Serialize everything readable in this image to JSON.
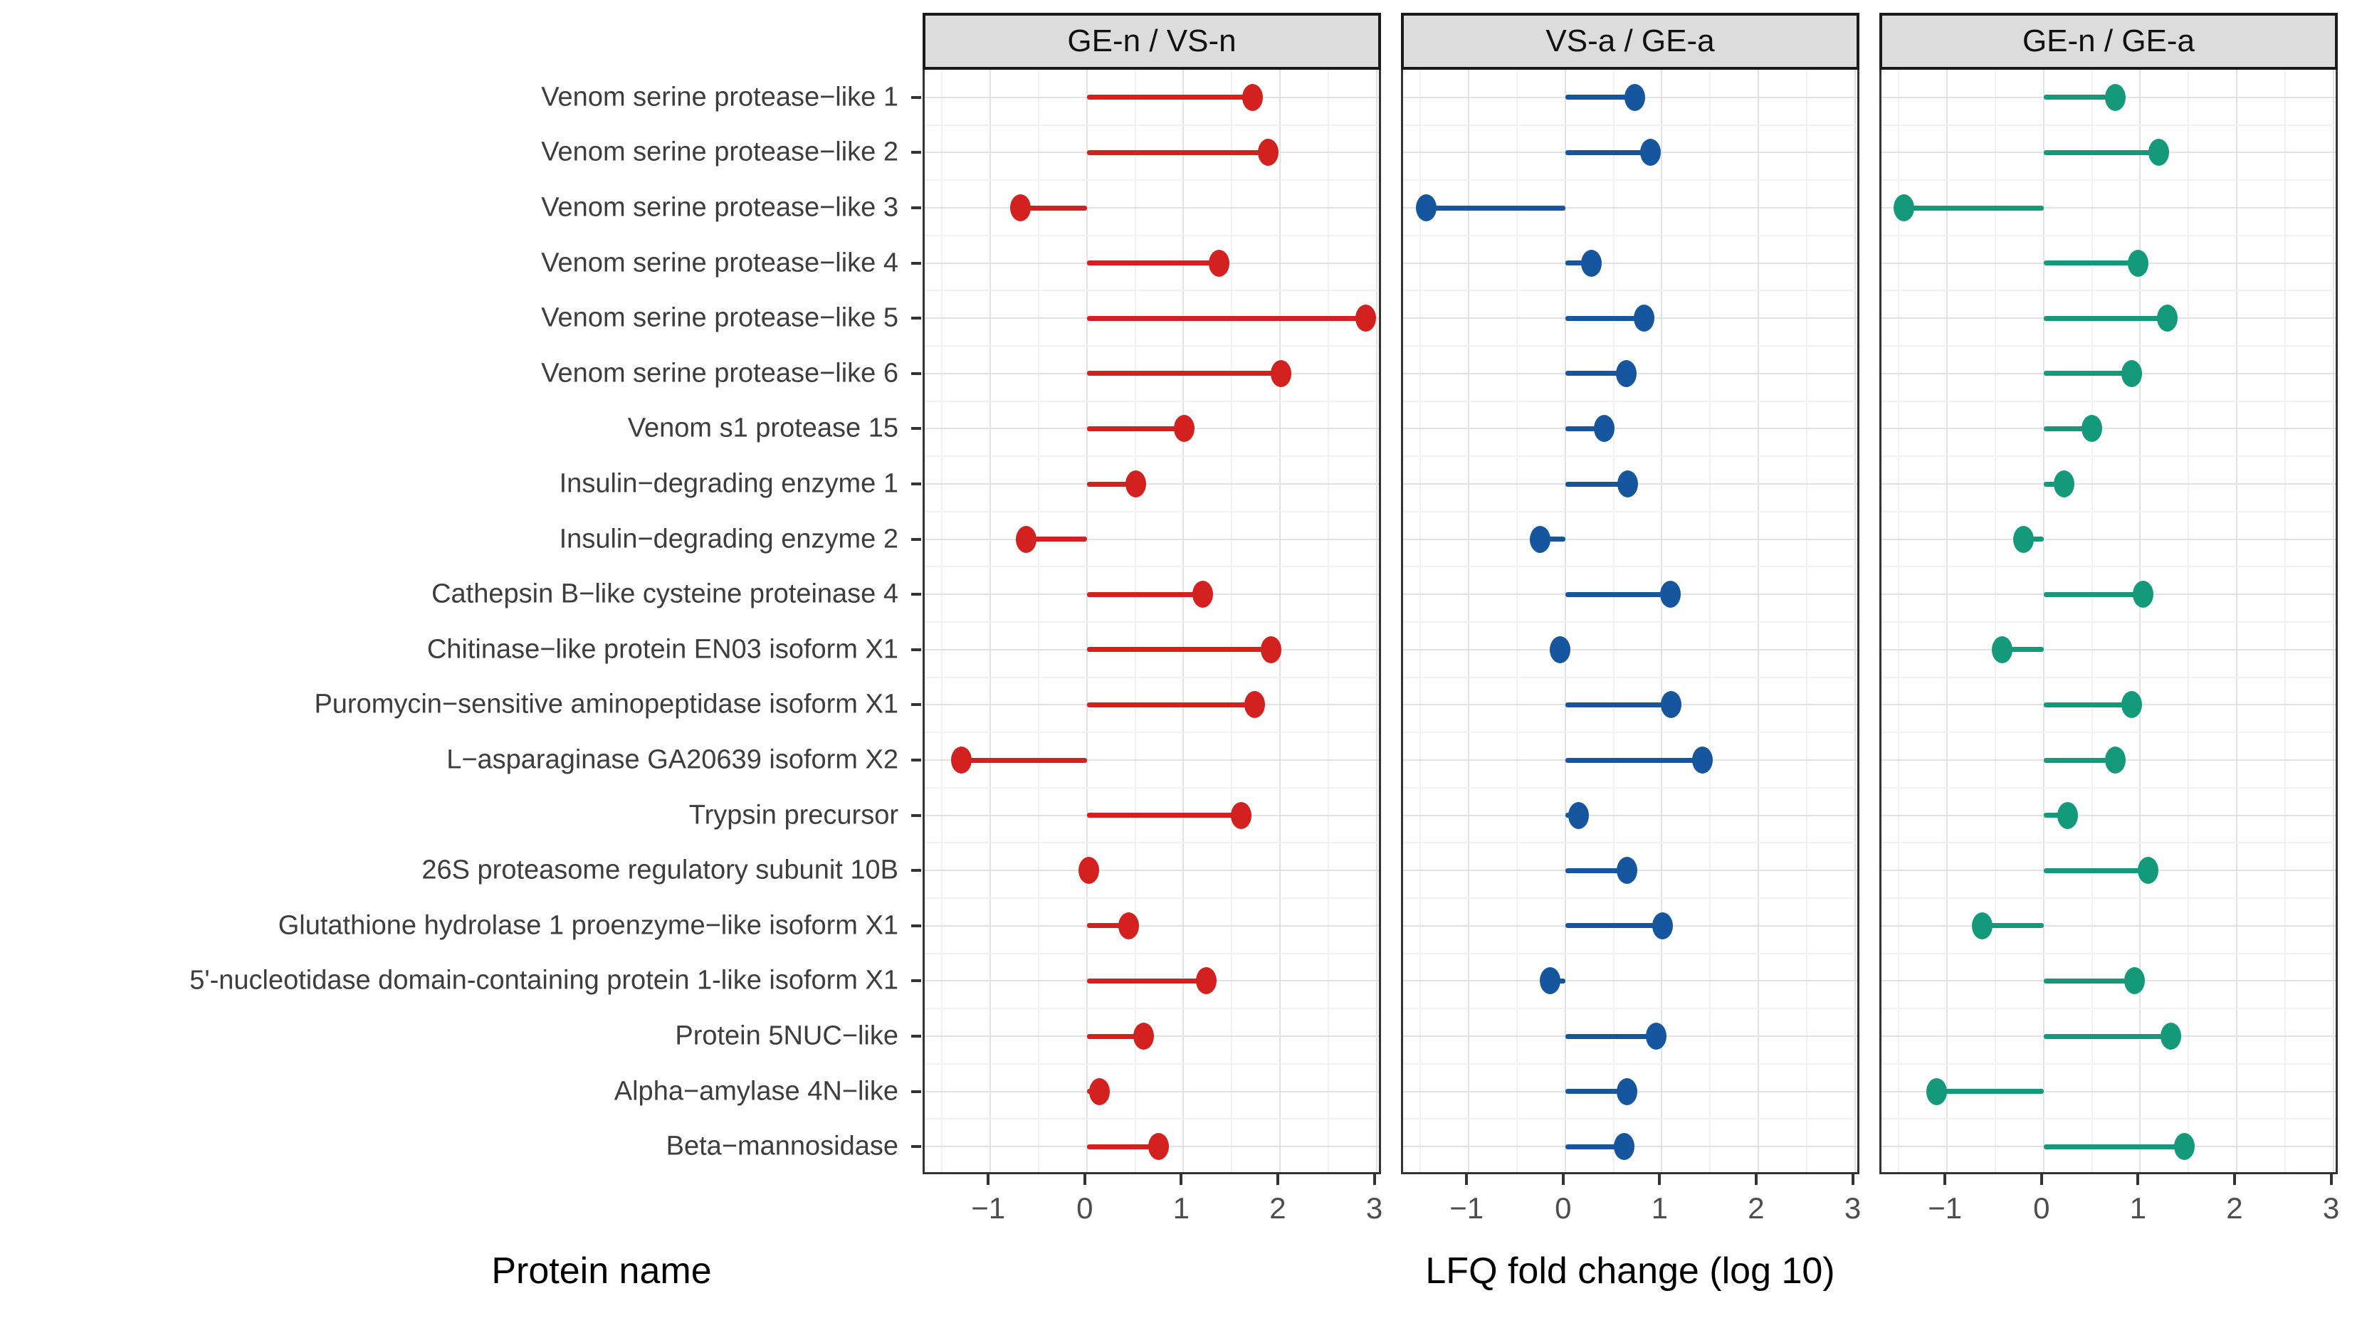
{
  "figure": {
    "y_axis_title": "Protein name",
    "x_axis_title": "LFQ fold change (log 10)"
  },
  "chart_data": {
    "type": "lollipop",
    "orientation": "horizontal",
    "title": "",
    "xlabel": "LFQ fold change (log 10)",
    "ylabel": "Protein name",
    "grid": true,
    "legend_position": "none",
    "xlim": [
      -1.68,
      3.07
    ],
    "x_ticks": [
      -1,
      0,
      1,
      2,
      3
    ],
    "x_tick_labels": [
      "−1",
      "0",
      "1",
      "2",
      "3"
    ],
    "minor_grid_step": 0.5,
    "baseline": 0,
    "categories": [
      "Venom serine protease−like 1",
      "Venom serine protease−like 2",
      "Venom serine protease−like 3",
      "Venom serine protease−like 4",
      "Venom serine protease−like 5",
      "Venom serine protease−like 6",
      "Venom s1 protease 15",
      "Insulin−degrading enzyme 1",
      "Insulin−degrading enzyme 2",
      "Cathepsin B−like cysteine proteinase 4",
      "Chitinase−like protein EN03 isoform X1",
      "Puromycin−sensitive aminopeptidase isoform X1",
      "L−asparaginase GA20639 isoform X2",
      "Trypsin precursor",
      "26S proteasome regulatory subunit 10B",
      "Glutathione hydrolase 1 proenzyme−like isoform X1",
      "5'-nucleotidase domain-containing protein 1-like isoform X1",
      "Protein 5NUC−like",
      "Alpha−amylase 4N−like",
      "Beta−mannosidase"
    ],
    "series": [
      {
        "name": "GE-n / VS-n",
        "color": "#d2211f",
        "values": [
          1.72,
          1.88,
          -0.69,
          1.37,
          2.89,
          2.01,
          1.01,
          0.51,
          -0.63,
          1.2,
          1.91,
          1.74,
          -1.3,
          1.6,
          0.02,
          0.43,
          1.24,
          0.59,
          0.13,
          0.74
        ]
      },
      {
        "name": "VS-a / GE-a",
        "color": "#16569e",
        "values": [
          0.72,
          0.88,
          -1.44,
          0.27,
          0.82,
          0.63,
          0.4,
          0.65,
          -0.26,
          1.09,
          -0.05,
          1.1,
          1.42,
          0.14,
          0.64,
          1.01,
          -0.16,
          0.94,
          0.64,
          0.61
        ]
      },
      {
        "name": "GE-n / GE-a",
        "color": "#15997b",
        "values": [
          0.74,
          1.19,
          -1.45,
          0.98,
          1.28,
          0.91,
          0.5,
          0.21,
          -0.21,
          1.03,
          -0.43,
          0.91,
          0.74,
          0.25,
          1.08,
          -0.64,
          0.94,
          1.32,
          -1.11,
          1.46
        ]
      }
    ]
  },
  "style": {
    "strip_bg": "#dcdcdc",
    "strip_border": "#1a1a1a",
    "panel_border": "#333333",
    "major_grid": "#e2e2e2",
    "minor_grid": "#f1f1f1",
    "tick_color": "#333333",
    "tick_label_color": "#4d4d4d",
    "y_label_color": "#3d3d3d"
  }
}
